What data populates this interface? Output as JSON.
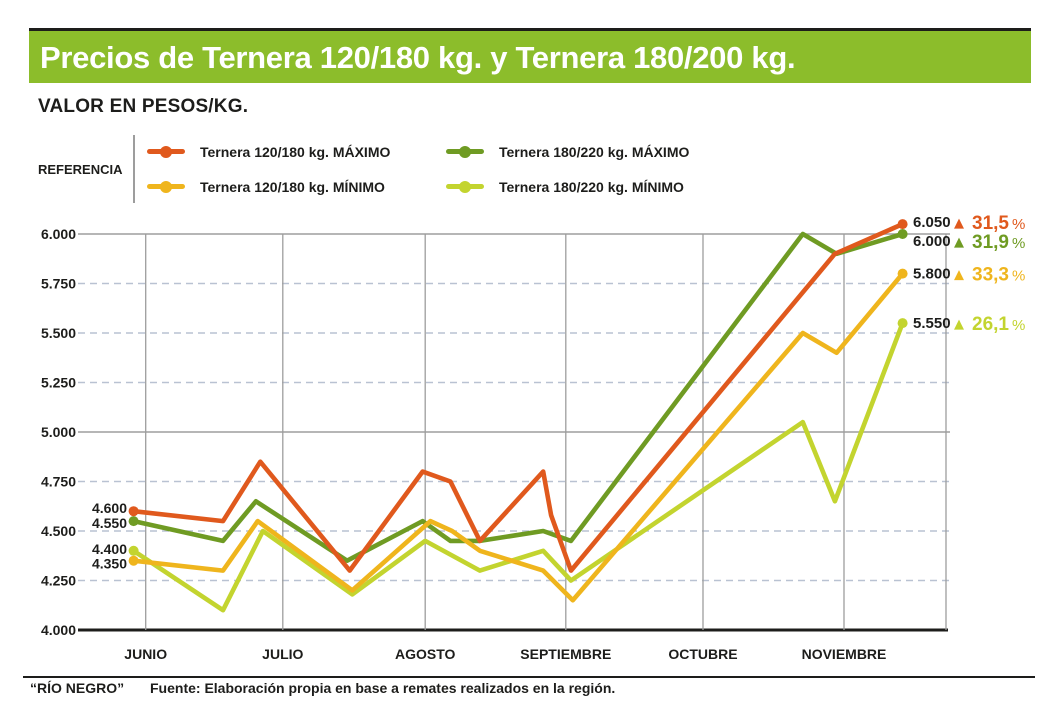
{
  "header": {
    "title": "Precios de Ternera 120/180 kg. y Ternera 180/200 kg.",
    "subtitle": "VALOR EN PESOS/KG."
  },
  "legend": {
    "reference_label": "REFERENCIA",
    "display_order": [
      0,
      2,
      1,
      3
    ]
  },
  "footer": {
    "brand": "“RÍO NEGRO”",
    "source": "Fuente: Elaboración propia en base a remates realizados en la región."
  },
  "chart_data": {
    "type": "line",
    "title": "Precios de Ternera 120/180 kg. y Ternera 180/200 kg.",
    "subtitle": "VALOR EN PESOS/KG.",
    "xlabel": "",
    "ylabel": "VALOR EN PESOS/KG.",
    "ylim": [
      4000,
      6000
    ],
    "legend_position": "top-left",
    "grid": "horizontal: solid gray at 6.000 and 5.000, light dashed every 250, black axis at 4.000; vertical gray line per month plus right border",
    "arrow_glyph": "▲",
    "pct_unit": "%",
    "colors": {
      "accent_bar": "#8cbd2b",
      "text": "#1d1d1b",
      "grid_solid": "#9d9d9d",
      "grid_dashed": "#b9c2d2"
    },
    "yticks": [
      {
        "label": "6.000",
        "value": 6000,
        "style": "solid"
      },
      {
        "label": "5.750",
        "value": 5750,
        "style": "dashed"
      },
      {
        "label": "5.500",
        "value": 5500,
        "style": "dashed"
      },
      {
        "label": "5.250",
        "value": 5250,
        "style": "dashed"
      },
      {
        "label": "5.000",
        "value": 5000,
        "style": "solid"
      },
      {
        "label": "4.750",
        "value": 4750,
        "style": "dashed"
      },
      {
        "label": "4.500",
        "value": 4500,
        "style": "dashed"
      },
      {
        "label": "4.250",
        "value": 4250,
        "style": "dashed"
      },
      {
        "label": "4.000",
        "value": 4000,
        "style": "axis"
      }
    ],
    "months": [
      {
        "label": "JUNIO",
        "x": 0.078
      },
      {
        "label": "JULIO",
        "x": 0.236
      },
      {
        "label": "AGOSTO",
        "x": 0.4
      },
      {
        "label": "SEPTIEMBRE",
        "x": 0.562
      },
      {
        "label": "OCTUBRE",
        "x": 0.72
      },
      {
        "label": "NOVIEMBRE",
        "x": 0.8825
      }
    ],
    "series": [
      {
        "name": "Ternera 120/180 kg. MÁXIMO",
        "color": "#e0591d",
        "start_label": "4.600",
        "end_label": "6.050",
        "change_pct": "31,5",
        "points": [
          [
            0.064,
            4600
          ],
          [
            0.167,
            4550
          ],
          [
            0.21,
            4850
          ],
          [
            0.313,
            4300
          ],
          [
            0.397,
            4800
          ],
          [
            0.429,
            4750
          ],
          [
            0.463,
            4450
          ],
          [
            0.536,
            4800
          ],
          [
            0.545,
            4580
          ],
          [
            0.568,
            4300
          ],
          [
            0.872,
            5900
          ],
          [
            0.95,
            6050
          ]
        ]
      },
      {
        "name": "Ternera 120/180 kg. MÍNIMO",
        "color": "#efb51d",
        "start_label": "4.350",
        "end_label": "5.800",
        "change_pct": "33,3",
        "points": [
          [
            0.064,
            4350
          ],
          [
            0.167,
            4300
          ],
          [
            0.207,
            4550
          ],
          [
            0.316,
            4200
          ],
          [
            0.406,
            4550
          ],
          [
            0.431,
            4500
          ],
          [
            0.463,
            4400
          ],
          [
            0.536,
            4300
          ],
          [
            0.57,
            4150
          ],
          [
            0.835,
            5500
          ],
          [
            0.874,
            5400
          ],
          [
            0.95,
            5800
          ]
        ]
      },
      {
        "name": "Ternera 180/220 kg. MÁXIMO",
        "color": "#6f9b23",
        "start_label": "4.550",
        "end_label": "6.000",
        "change_pct": "31,9",
        "points": [
          [
            0.064,
            4550
          ],
          [
            0.167,
            4450
          ],
          [
            0.205,
            4650
          ],
          [
            0.31,
            4350
          ],
          [
            0.397,
            4550
          ],
          [
            0.429,
            4450
          ],
          [
            0.463,
            4450
          ],
          [
            0.536,
            4500
          ],
          [
            0.568,
            4450
          ],
          [
            0.835,
            6000
          ],
          [
            0.874,
            5900
          ],
          [
            0.95,
            6000
          ]
        ]
      },
      {
        "name": "Ternera 180/220 kg. MÍNIMO",
        "color": "#c3d42f",
        "start_label": "4.400",
        "end_label": "5.550",
        "change_pct": "26,1",
        "points": [
          [
            0.064,
            4400
          ],
          [
            0.167,
            4100
          ],
          [
            0.213,
            4500
          ],
          [
            0.316,
            4180
          ],
          [
            0.4,
            4450
          ],
          [
            0.463,
            4300
          ],
          [
            0.536,
            4400
          ],
          [
            0.568,
            4250
          ],
          [
            0.835,
            5050
          ],
          [
            0.872,
            4650
          ],
          [
            0.95,
            5550
          ]
        ]
      }
    ]
  }
}
